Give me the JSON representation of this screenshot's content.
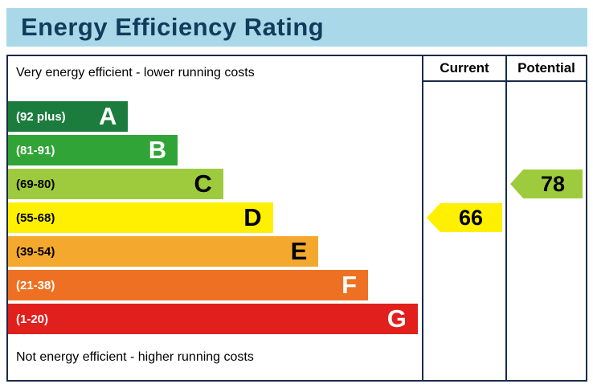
{
  "title": "Energy Efficiency Rating",
  "captions": {
    "top": "Very energy efficient - lower running costs",
    "bottom": "Not energy efficient - higher running costs"
  },
  "columns": {
    "current": "Current",
    "potential": "Potential"
  },
  "chart_data": {
    "type": "bar",
    "orientation": "horizontal",
    "title": "Energy Efficiency Rating",
    "bands": [
      {
        "grade": "A",
        "range_label": "(92 plus)",
        "min": 92,
        "max": 100,
        "color": "#1c7c3e",
        "text_color": "#ffffff",
        "width_pct": 29
      },
      {
        "grade": "B",
        "range_label": "(81-91)",
        "min": 81,
        "max": 91,
        "color": "#31a437",
        "text_color": "#ffffff",
        "width_pct": 41
      },
      {
        "grade": "C",
        "range_label": "(69-80)",
        "min": 69,
        "max": 80,
        "color": "#9ecb3d",
        "text_color": "#000000",
        "width_pct": 52
      },
      {
        "grade": "D",
        "range_label": "(55-68)",
        "min": 55,
        "max": 68,
        "color": "#fef000",
        "text_color": "#000000",
        "width_pct": 64
      },
      {
        "grade": "E",
        "range_label": "(39-54)",
        "min": 39,
        "max": 54,
        "color": "#f4a82e",
        "text_color": "#000000",
        "width_pct": 75
      },
      {
        "grade": "F",
        "range_label": "(21-38)",
        "min": 21,
        "max": 38,
        "color": "#ee7123",
        "text_color": "#ffffff",
        "width_pct": 87
      },
      {
        "grade": "G",
        "range_label": "(1-20)",
        "min": 1,
        "max": 20,
        "color": "#e1201d",
        "text_color": "#ffffff",
        "width_pct": 99
      }
    ],
    "markers": [
      {
        "name": "current",
        "value": 66,
        "band": "D",
        "color": "#fef000",
        "column": "current"
      },
      {
        "name": "potential",
        "value": 78,
        "band": "C",
        "color": "#9ecb3d",
        "column": "potential"
      }
    ]
  },
  "theme": {
    "title_bg": "#a9d9e8",
    "title_color": "#123b5d",
    "border_color": "#1b2a4a",
    "background": "#ffffff"
  }
}
